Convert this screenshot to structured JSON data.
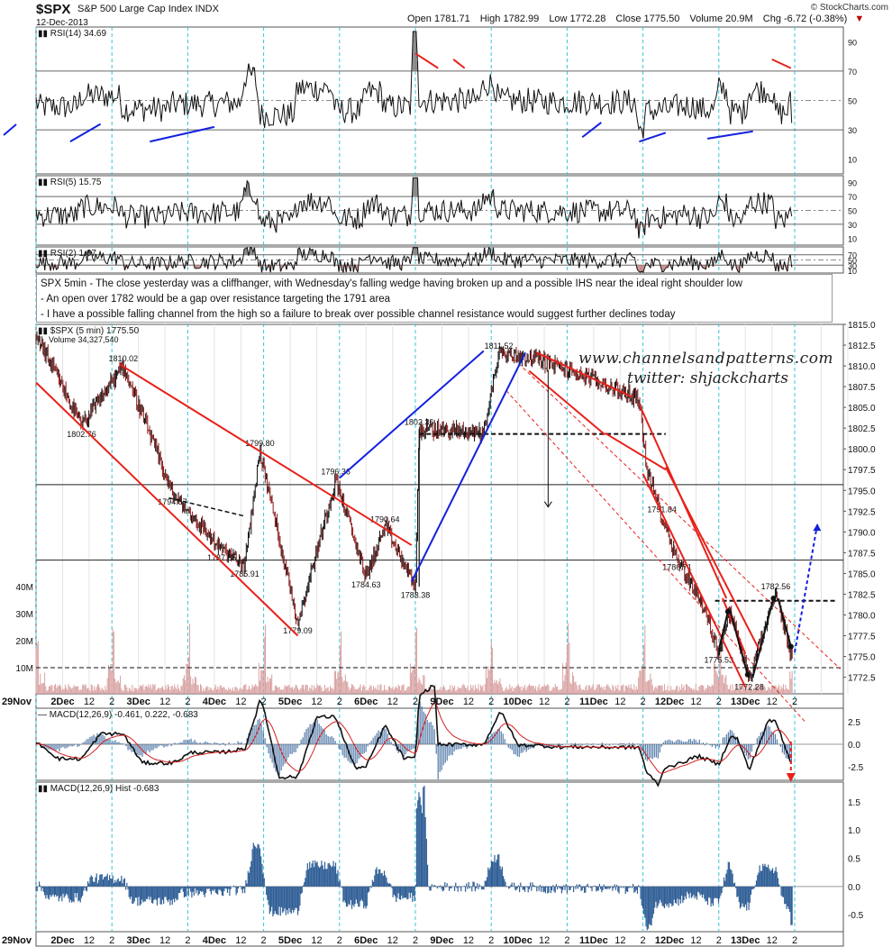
{
  "header": {
    "symbol": "$SPX",
    "name": "S&P 500 Large Cap Index INDX",
    "date": "12-Dec-2013",
    "open_label": "Open 1781.71",
    "high_label": "High 1782.99",
    "low_label": "Low 1772.28",
    "close_label": "Close 1775.50",
    "volume_label": "Volume 20.9M",
    "change_label": "Chg -6.72 (-0.38%)",
    "copyright": "© StockCharts.com"
  },
  "annotation": {
    "line1": "SPX 5min - The close yesterday was a cliffhanger, with Wednesday's falling wedge having broken up and a possible IHS near the ideal right shoulder low",
    "line2": "- An open over 1782 would be a gap over resistance targeting the 1791 area",
    "line3": "- I have a possible falling channel from the high so a failure to break over possible channel resistance would suggest further declines today"
  },
  "watermark": {
    "site": "www.channelsandpatterns.com",
    "twitter": "twitter: shjackcharts"
  },
  "colors": {
    "price_up": "#111111",
    "price_down": "#8b1a1a",
    "trend_red": "#e8211a",
    "trend_blue": "#1320e0",
    "volume": "#d9a0a0",
    "macd_hist": "#2f5e96",
    "rsi_fill_over": "#888888",
    "rsi_fill_under": "#c88a8a",
    "session_line": "#39c5d8"
  },
  "chart_data": [
    {
      "type": "line",
      "panel": "rsi14",
      "title": "RSI(14) 34.69",
      "y_ticks": [
        10,
        30,
        50,
        70,
        90
      ],
      "ylim": [
        0,
        100
      ],
      "levels": [
        30,
        70
      ],
      "last": 34.69
    },
    {
      "type": "line",
      "panel": "rsi5",
      "title": "RSI(5) 15.75",
      "y_ticks": [
        10,
        30,
        50,
        70,
        90
      ],
      "ylim": [
        0,
        100
      ],
      "levels": [
        30,
        70
      ],
      "last": 15.75
    },
    {
      "type": "line",
      "panel": "rsi2",
      "title": "RSI(2) 1.67",
      "y_ticks": [
        10,
        30,
        50,
        70,
        90
      ],
      "ylim": [
        0,
        100
      ],
      "levels": [
        30,
        70
      ],
      "last": 1.67
    },
    {
      "type": "line",
      "panel": "price",
      "title": "$SPX (5 min) 1775.50",
      "volume_label": "Volume 34,327,540",
      "ylim": [
        1770.5,
        1815
      ],
      "y_ticks": [
        1772.5,
        1775.0,
        1777.5,
        1780.0,
        1782.5,
        1785.0,
        1787.5,
        1790.0,
        1792.5,
        1795.0,
        1797.5,
        1800.0,
        1802.5,
        1805.0,
        1807.5,
        1810.0,
        1812.5,
        1815.0
      ],
      "volume_ticks": [
        "10M",
        "20M",
        "30M",
        "40M"
      ],
      "x_session_labels": [
        "29Nov",
        "2Dec",
        "12",
        "2",
        "3Dec",
        "12",
        "2",
        "4Dec",
        "12",
        "2",
        "5Dec",
        "12",
        "2",
        "6Dec",
        "12",
        "2",
        "9Dec",
        "12",
        "2",
        "10Dec",
        "12",
        "2",
        "11Dec",
        "12",
        "2",
        "12Dec",
        "12",
        "2",
        "13Dec",
        "12",
        "2"
      ],
      "pivots": [
        {
          "day": 0.05,
          "price": 1812.9
        },
        {
          "day": 0.6,
          "price": 1802.76,
          "label": "1802.76"
        },
        {
          "day": 1.15,
          "price": 1810.02,
          "label": "1810.02"
        },
        {
          "day": 1.8,
          "price": 1794.57,
          "label": "1794.57"
        },
        {
          "day": 2.45,
          "price": 1787.85,
          "label": "1787.85"
        },
        {
          "day": 2.75,
          "price": 1785.91,
          "label": "1785.91"
        },
        {
          "day": 2.95,
          "price": 1799.8,
          "label": "1799.80"
        },
        {
          "day": 3.45,
          "price": 1779.09,
          "label": "1779.09"
        },
        {
          "day": 3.95,
          "price": 1796.36,
          "label": "1796.36"
        },
        {
          "day": 4.35,
          "price": 1784.63,
          "label": "1784.63"
        },
        {
          "day": 4.6,
          "price": 1790.64,
          "label": "1790.64"
        },
        {
          "day": 5.0,
          "price": 1783.38,
          "label": "1783.38"
        },
        {
          "day": 5.05,
          "price": 1802.36,
          "label": "1802.36"
        },
        {
          "day": 5.9,
          "price": 1802.0
        },
        {
          "day": 6.1,
          "price": 1811.52,
          "label": "1811.52"
        },
        {
          "day": 6.6,
          "price": 1810.9
        },
        {
          "day": 7.3,
          "price": 1808.5
        },
        {
          "day": 7.95,
          "price": 1806.0
        },
        {
          "day": 8.05,
          "price": 1797.5
        },
        {
          "day": 8.25,
          "price": 1791.84,
          "label": "1791.84"
        },
        {
          "day": 8.45,
          "price": 1786.71,
          "label": "1786.71"
        },
        {
          "day": 8.75,
          "price": 1782.0
        },
        {
          "day": 9.0,
          "price": 1775.53,
          "label": "1775.53"
        },
        {
          "day": 9.15,
          "price": 1780.5
        },
        {
          "day": 9.4,
          "price": 1772.28,
          "label": "1772.28"
        },
        {
          "day": 9.75,
          "price": 1782.56,
          "label": "1782.56"
        },
        {
          "day": 9.95,
          "price": 1775.5
        }
      ],
      "last": 1775.5
    },
    {
      "type": "line",
      "panel": "macd",
      "title": "MACD(12,26,9) -0.461, 0.222, -0.683",
      "series": [
        {
          "name": "MACD(12,26,9)",
          "last": -0.461
        },
        {
          "name": "signal",
          "last": 0.222
        },
        {
          "name": "hist",
          "last": -0.683
        }
      ],
      "y_ticks": [
        -2.5,
        0.0,
        2.5
      ],
      "ylim": [
        -4,
        4
      ]
    },
    {
      "type": "bar",
      "panel": "macd_hist",
      "title": "MACD(12,26,9) Hist -0.683",
      "y_ticks": [
        -0.5,
        0.0,
        0.5,
        1.0,
        1.5
      ],
      "ylim": [
        -0.8,
        1.85
      ],
      "last": -0.683
    }
  ]
}
